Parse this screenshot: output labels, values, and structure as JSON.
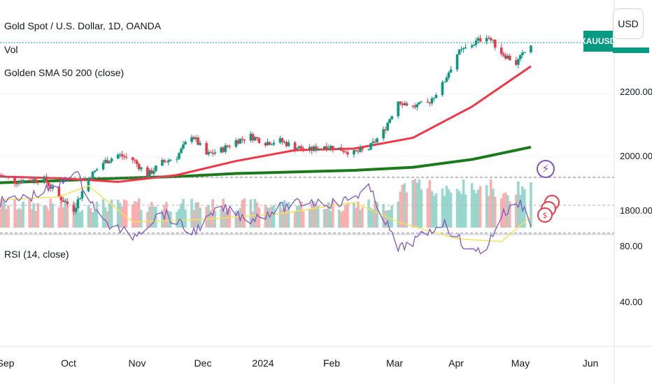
{
  "header": {
    "symbol_title": "Gold Spot / U.S. Dollar, 1D, OANDA",
    "vol_label": "Vol",
    "sma_label": "Golden SMA 50 200 (close)",
    "rsi_label": "RSI (14, close)",
    "currency_button": "USD",
    "symbol_tag": "XAUUSD"
  },
  "icons": {
    "flash": "lightning-icon",
    "events": "dividend-coin-icon"
  },
  "colors": {
    "up": "#089981",
    "down": "#f23645",
    "sma50": "#f23645",
    "sma200": "#1b7a1b",
    "rsi": "#7e57c2",
    "rsi_ma": "#f7e15a",
    "rsi_band": "#ede7f6"
  },
  "chart_data": [
    {
      "type": "candlestick",
      "title": "Gold Spot / U.S. Dollar, 1D, OANDA",
      "x_ticks": [
        "Sep",
        "Oct",
        "Nov",
        "Dec",
        "2024",
        "Feb",
        "Mar",
        "Apr",
        "May",
        "Jun"
      ],
      "y_ticks": [
        "2200.000",
        "2000.000",
        "1800.000"
      ],
      "last_price_tag": "XAUUSD",
      "close_series": [
        {
          "x": "2023-08-28",
          "y": 1940
        },
        {
          "x": "2023-09-04",
          "y": 1920
        },
        {
          "x": "2023-09-11",
          "y": 1925
        },
        {
          "x": "2023-09-18",
          "y": 1925
        },
        {
          "x": "2023-09-25",
          "y": 1870
        },
        {
          "x": "2023-10-02",
          "y": 1830
        },
        {
          "x": "2023-10-09",
          "y": 1930
        },
        {
          "x": "2023-10-16",
          "y": 1980
        },
        {
          "x": "2023-10-23",
          "y": 2005
        },
        {
          "x": "2023-10-30",
          "y": 1990
        },
        {
          "x": "2023-11-06",
          "y": 1940
        },
        {
          "x": "2023-11-13",
          "y": 1980
        },
        {
          "x": "2023-11-20",
          "y": 2000
        },
        {
          "x": "2023-11-27",
          "y": 2070
        },
        {
          "x": "2023-12-04",
          "y": 2005
        },
        {
          "x": "2023-12-11",
          "y": 2020
        },
        {
          "x": "2023-12-18",
          "y": 2050
        },
        {
          "x": "2023-12-25",
          "y": 2065
        },
        {
          "x": "2024-01-01",
          "y": 2045
        },
        {
          "x": "2024-01-08",
          "y": 2050
        },
        {
          "x": "2024-01-15",
          "y": 2030
        },
        {
          "x": "2024-01-22",
          "y": 2020
        },
        {
          "x": "2024-01-29",
          "y": 2035
        },
        {
          "x": "2024-02-05",
          "y": 2025
        },
        {
          "x": "2024-02-12",
          "y": 2010
        },
        {
          "x": "2024-02-19",
          "y": 2025
        },
        {
          "x": "2024-02-26",
          "y": 2080
        },
        {
          "x": "2024-03-04",
          "y": 2180
        },
        {
          "x": "2024-03-11",
          "y": 2160
        },
        {
          "x": "2024-03-18",
          "y": 2170
        },
        {
          "x": "2024-03-25",
          "y": 2230
        },
        {
          "x": "2024-04-01",
          "y": 2330
        },
        {
          "x": "2024-04-08",
          "y": 2360
        },
        {
          "x": "2024-04-15",
          "y": 2390
        },
        {
          "x": "2024-04-22",
          "y": 2335
        },
        {
          "x": "2024-04-29",
          "y": 2300
        },
        {
          "x": "2024-05-06",
          "y": 2360
        }
      ],
      "sma50": [
        {
          "x": "2023-08-28",
          "y": 1935
        },
        {
          "x": "2023-09-25",
          "y": 1930
        },
        {
          "x": "2023-10-23",
          "y": 1918
        },
        {
          "x": "2023-11-20",
          "y": 1940
        },
        {
          "x": "2023-12-18",
          "y": 1985
        },
        {
          "x": "2024-01-15",
          "y": 2020
        },
        {
          "x": "2024-02-12",
          "y": 2025
        },
        {
          "x": "2024-03-11",
          "y": 2060
        },
        {
          "x": "2024-04-08",
          "y": 2160
        },
        {
          "x": "2024-05-06",
          "y": 2290
        }
      ],
      "sma200": [
        {
          "x": "2023-08-28",
          "y": 1915
        },
        {
          "x": "2023-09-25",
          "y": 1922
        },
        {
          "x": "2023-10-23",
          "y": 1930
        },
        {
          "x": "2023-11-20",
          "y": 1935
        },
        {
          "x": "2023-12-18",
          "y": 1945
        },
        {
          "x": "2024-01-15",
          "y": 1950
        },
        {
          "x": "2024-02-12",
          "y": 1955
        },
        {
          "x": "2024-03-11",
          "y": 1965
        },
        {
          "x": "2024-04-08",
          "y": 1990
        },
        {
          "x": "2024-05-06",
          "y": 2030
        }
      ]
    },
    {
      "type": "line",
      "title": "RSI (14, close)",
      "y_ticks": [
        "80.00",
        "40.00"
      ],
      "bands": [
        70,
        30
      ],
      "series": [
        {
          "name": "RSI",
          "values": [
            {
              "x": "2023-08-28",
              "y": 48
            },
            {
              "x": "2023-09-11",
              "y": 44
            },
            {
              "x": "2023-09-25",
              "y": 36
            },
            {
              "x": "2023-10-02",
              "y": 24
            },
            {
              "x": "2023-10-16",
              "y": 62
            },
            {
              "x": "2023-10-30",
              "y": 72
            },
            {
              "x": "2023-11-13",
              "y": 55
            },
            {
              "x": "2023-11-27",
              "y": 70
            },
            {
              "x": "2023-12-11",
              "y": 52
            },
            {
              "x": "2023-12-25",
              "y": 60
            },
            {
              "x": "2024-01-08",
              "y": 52
            },
            {
              "x": "2024-01-22",
              "y": 47
            },
            {
              "x": "2024-02-05",
              "y": 49
            },
            {
              "x": "2024-02-19",
              "y": 38
            },
            {
              "x": "2024-02-26",
              "y": 58
            },
            {
              "x": "2024-03-04",
              "y": 82
            },
            {
              "x": "2024-03-18",
              "y": 70
            },
            {
              "x": "2024-03-25",
              "y": 62
            },
            {
              "x": "2024-04-08",
              "y": 84
            },
            {
              "x": "2024-04-15",
              "y": 80
            },
            {
              "x": "2024-04-22",
              "y": 57
            },
            {
              "x": "2024-05-01",
              "y": 48
            },
            {
              "x": "2024-05-06",
              "y": 62
            }
          ]
        },
        {
          "name": "RSI MA",
          "values": [
            {
              "x": "2023-08-28",
              "y": 46
            },
            {
              "x": "2023-09-25",
              "y": 44
            },
            {
              "x": "2023-10-09",
              "y": 36
            },
            {
              "x": "2023-10-30",
              "y": 62
            },
            {
              "x": "2023-12-04",
              "y": 60
            },
            {
              "x": "2024-01-08",
              "y": 56
            },
            {
              "x": "2024-02-12",
              "y": 48
            },
            {
              "x": "2024-03-04",
              "y": 62
            },
            {
              "x": "2024-04-01",
              "y": 74
            },
            {
              "x": "2024-04-22",
              "y": 76
            },
            {
              "x": "2024-05-06",
              "y": 58
            }
          ]
        }
      ]
    }
  ]
}
